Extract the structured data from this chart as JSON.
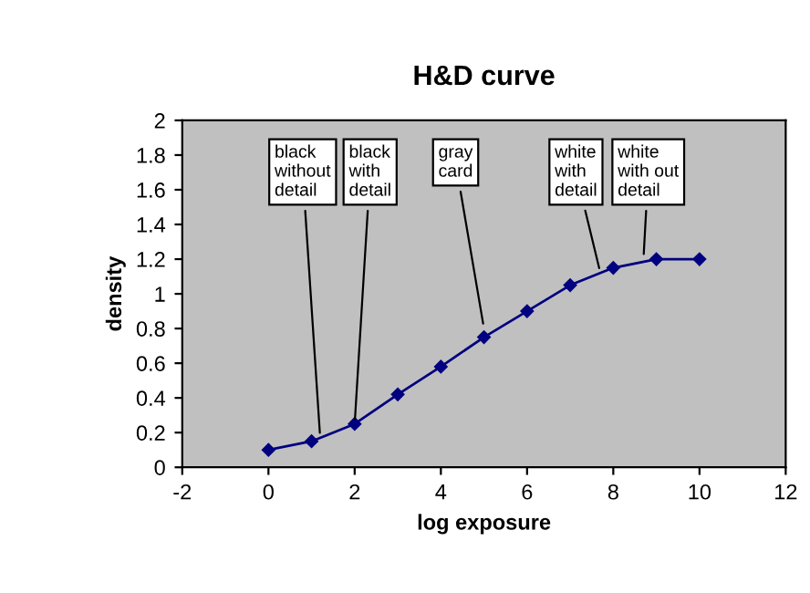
{
  "chart_data": {
    "type": "line",
    "title": "H&D curve",
    "xlabel": "log exposure",
    "ylabel": "density",
    "x": [
      0,
      1,
      2,
      3,
      4,
      5,
      6,
      7,
      8,
      9,
      10
    ],
    "series": [
      {
        "color": "#000080",
        "values": [
          0.1,
          0.15,
          0.25,
          0.42,
          0.58,
          0.75,
          0.9,
          1.05,
          1.15,
          1.2,
          1.2
        ]
      }
    ],
    "xlim": [
      -2,
      12
    ],
    "xticks": [
      -2,
      0,
      2,
      4,
      6,
      8,
      10,
      12
    ],
    "ylim": [
      0,
      2
    ],
    "yticks": [
      0,
      0.2,
      0.4,
      0.6,
      0.8,
      1,
      1.2,
      1.4,
      1.6,
      1.8,
      2
    ],
    "grid": false,
    "legend": false,
    "marker": "diamond",
    "line_style": "solid",
    "annotations": [
      {
        "text": "black\nwithout\ndetail",
        "x": 1.2,
        "y": 0.17
      },
      {
        "text": "black\nwith\ndetail",
        "x": 2,
        "y": 0.25
      },
      {
        "text": "gray\ncard",
        "x": 5,
        "y": 0.8
      },
      {
        "text": "white\nwith\ndetail",
        "x": 7.7,
        "y": 1.12
      },
      {
        "text": "white\nwith out\ndetail",
        "x": 8.7,
        "y": 1.2
      }
    ]
  }
}
